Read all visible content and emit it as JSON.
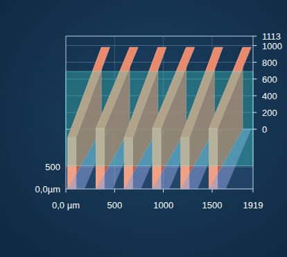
{
  "chart_data": {
    "type": "surface3d",
    "xlim": [
      0,
      1919
    ],
    "xticks": [
      {
        "value": 0,
        "label": "0,0 µm"
      },
      500,
      1000,
      1500,
      1919
    ],
    "ylim": [
      0,
      1350
    ],
    "yticks": [
      {
        "value": 0,
        "label": "0,0µm"
      },
      500
    ],
    "zlim": [
      0,
      1113
    ],
    "zticks": [
      0,
      200,
      400,
      600,
      800,
      1000,
      1113
    ],
    "grid": true
  }
}
